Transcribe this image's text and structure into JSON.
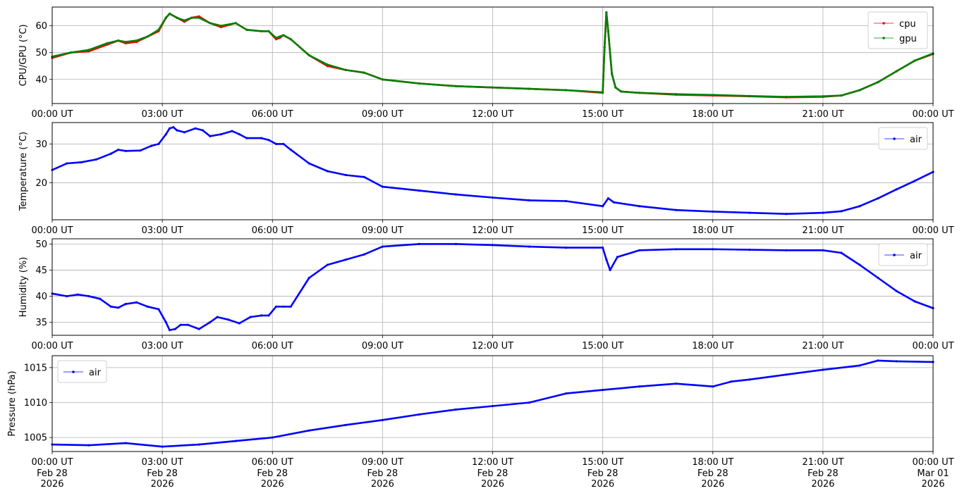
{
  "x_ticks": [
    "00:00 UT",
    "03:00 UT",
    "06:00 UT",
    "09:00 UT",
    "12:00 UT",
    "15:00 UT",
    "18:00 UT",
    "21:00 UT",
    "00:00 UT"
  ],
  "x_dates": [
    "Feb 28",
    "Feb 28",
    "Feb 28",
    "Feb 28",
    "Feb 28",
    "Feb 28",
    "Feb 28",
    "Feb 28",
    "Mar 01"
  ],
  "x_years": [
    "2026",
    "2026",
    "2026",
    "2026",
    "2026",
    "2026",
    "2026",
    "2026",
    "2026"
  ],
  "colors": {
    "cpu": "#ff0000",
    "gpu": "#008000",
    "air": "#0000ff",
    "grid": "#b0b0b0"
  },
  "chart_data": [
    {
      "type": "line",
      "ylabel": "CPU/GPU (°C)",
      "xlim_hours": [
        0,
        24
      ],
      "ylim": [
        31,
        67
      ],
      "yticks": [
        40,
        50,
        60
      ],
      "grid": true,
      "legend": "top-right",
      "series": [
        {
          "name": "cpu",
          "color": "#ff0000",
          "points": [
            [
              0,
              48
            ],
            [
              0.5,
              50
            ],
            [
              1,
              50.5
            ],
            [
              1.5,
              53
            ],
            [
              1.8,
              54.5
            ],
            [
              2,
              53.5
            ],
            [
              2.3,
              54
            ],
            [
              2.6,
              56
            ],
            [
              2.9,
              58
            ],
            [
              3.1,
              63
            ],
            [
              3.2,
              64.5
            ],
            [
              3.4,
              63
            ],
            [
              3.6,
              61.5
            ],
            [
              3.8,
              63
            ],
            [
              4,
              63.5
            ],
            [
              4.3,
              61
            ],
            [
              4.6,
              59.5
            ],
            [
              5,
              61
            ],
            [
              5.3,
              58.5
            ],
            [
              5.7,
              58
            ],
            [
              5.9,
              58
            ],
            [
              6.1,
              55
            ],
            [
              6.2,
              55.5
            ],
            [
              6.3,
              56.5
            ],
            [
              6.5,
              55
            ],
            [
              7,
              49
            ],
            [
              7.5,
              45
            ],
            [
              8,
              43.5
            ],
            [
              8.5,
              42.5
            ],
            [
              9,
              40
            ],
            [
              10,
              38.5
            ],
            [
              11,
              37.5
            ],
            [
              12,
              37
            ],
            [
              13,
              36.5
            ],
            [
              14,
              36
            ],
            [
              15,
              35
            ],
            [
              15.05,
              52
            ],
            [
              15.1,
              65
            ],
            [
              15.15,
              58
            ],
            [
              15.25,
              42
            ],
            [
              15.35,
              37
            ],
            [
              15.5,
              35.5
            ],
            [
              16,
              35
            ],
            [
              17,
              34.3
            ],
            [
              18,
              34
            ],
            [
              19,
              33.7
            ],
            [
              20,
              33.3
            ],
            [
              21,
              33.5
            ],
            [
              21.5,
              34
            ],
            [
              22,
              36
            ],
            [
              22.5,
              39
            ],
            [
              23,
              43
            ],
            [
              23.5,
              47
            ],
            [
              24,
              49.5
            ]
          ]
        },
        {
          "name": "gpu",
          "color": "#008000",
          "points": [
            [
              0,
              48.5
            ],
            [
              0.5,
              50
            ],
            [
              1,
              51
            ],
            [
              1.5,
              53.5
            ],
            [
              1.8,
              54.5
            ],
            [
              2,
              54
            ],
            [
              2.3,
              54.5
            ],
            [
              2.6,
              56
            ],
            [
              2.9,
              58.5
            ],
            [
              3.1,
              63
            ],
            [
              3.2,
              64.5
            ],
            [
              3.4,
              63
            ],
            [
              3.6,
              62
            ],
            [
              3.8,
              63
            ],
            [
              4,
              63
            ],
            [
              4.3,
              61
            ],
            [
              4.6,
              60
            ],
            [
              5,
              61
            ],
            [
              5.3,
              58.5
            ],
            [
              5.7,
              58
            ],
            [
              5.9,
              58
            ],
            [
              6.1,
              55.5
            ],
            [
              6.2,
              56
            ],
            [
              6.3,
              56.5
            ],
            [
              6.5,
              55
            ],
            [
              7,
              49
            ],
            [
              7.5,
              45.5
            ],
            [
              8,
              43.5
            ],
            [
              8.5,
              42.5
            ],
            [
              9,
              40
            ],
            [
              10,
              38.5
            ],
            [
              11,
              37.5
            ],
            [
              12,
              37
            ],
            [
              13,
              36.5
            ],
            [
              14,
              36
            ],
            [
              15,
              35.2
            ],
            [
              15.05,
              52
            ],
            [
              15.1,
              65
            ],
            [
              15.15,
              58
            ],
            [
              15.25,
              42
            ],
            [
              15.35,
              37
            ],
            [
              15.5,
              35.5
            ],
            [
              16,
              35
            ],
            [
              17,
              34.5
            ],
            [
              18,
              34.2
            ],
            [
              19,
              33.8
            ],
            [
              20,
              33.5
            ],
            [
              21,
              33.7
            ],
            [
              21.5,
              34
            ],
            [
              22,
              36
            ],
            [
              22.5,
              39
            ],
            [
              23,
              43
            ],
            [
              23.5,
              47
            ],
            [
              24,
              49.7
            ]
          ]
        }
      ]
    },
    {
      "type": "line",
      "ylabel": "Temperature (°C)",
      "xlim_hours": [
        0,
        24
      ],
      "ylim": [
        10.5,
        35.5
      ],
      "yticks": [
        20,
        30
      ],
      "grid": true,
      "legend": "top-right",
      "series": [
        {
          "name": "air",
          "color": "#0000ff",
          "points": [
            [
              0,
              23.3
            ],
            [
              0.4,
              25
            ],
            [
              0.8,
              25.3
            ],
            [
              1.2,
              26
            ],
            [
              1.6,
              27.5
            ],
            [
              1.8,
              28.5
            ],
            [
              2,
              28.2
            ],
            [
              2.4,
              28.3
            ],
            [
              2.7,
              29.5
            ],
            [
              2.9,
              30
            ],
            [
              3.1,
              32.5
            ],
            [
              3.2,
              34
            ],
            [
              3.3,
              34.3
            ],
            [
              3.4,
              33.5
            ],
            [
              3.6,
              33
            ],
            [
              3.9,
              34
            ],
            [
              4.1,
              33.5
            ],
            [
              4.3,
              32
            ],
            [
              4.6,
              32.5
            ],
            [
              4.9,
              33.3
            ],
            [
              5.1,
              32.5
            ],
            [
              5.3,
              31.5
            ],
            [
              5.7,
              31.5
            ],
            [
              5.9,
              31
            ],
            [
              6.1,
              30
            ],
            [
              6.3,
              30
            ],
            [
              6.5,
              28.5
            ],
            [
              7,
              25
            ],
            [
              7.5,
              23
            ],
            [
              8,
              22
            ],
            [
              8.5,
              21.5
            ],
            [
              9,
              19
            ],
            [
              10,
              18
            ],
            [
              11,
              17
            ],
            [
              12,
              16.2
            ],
            [
              13,
              15.5
            ],
            [
              14,
              15.3
            ],
            [
              15,
              14
            ],
            [
              15.15,
              16
            ],
            [
              15.3,
              15
            ],
            [
              16,
              14
            ],
            [
              17,
              13
            ],
            [
              18,
              12.6
            ],
            [
              19,
              12.3
            ],
            [
              20,
              12
            ],
            [
              21,
              12.3
            ],
            [
              21.5,
              12.7
            ],
            [
              22,
              14
            ],
            [
              22.5,
              16
            ],
            [
              23,
              18.3
            ],
            [
              23.5,
              20.5
            ],
            [
              24,
              22.8
            ]
          ]
        }
      ]
    },
    {
      "type": "line",
      "ylabel": "Humidity (%)",
      "xlim_hours": [
        0,
        24
      ],
      "ylim": [
        32.5,
        51
      ],
      "yticks": [
        35,
        40,
        45,
        50
      ],
      "grid": true,
      "legend": "top-right",
      "series": [
        {
          "name": "air",
          "color": "#0000ff",
          "points": [
            [
              0,
              40.5
            ],
            [
              0.4,
              40
            ],
            [
              0.7,
              40.3
            ],
            [
              1,
              40
            ],
            [
              1.3,
              39.5
            ],
            [
              1.6,
              38
            ],
            [
              1.8,
              37.8
            ],
            [
              2,
              38.5
            ],
            [
              2.3,
              38.8
            ],
            [
              2.6,
              38
            ],
            [
              2.9,
              37.5
            ],
            [
              3.1,
              35
            ],
            [
              3.2,
              33.5
            ],
            [
              3.35,
              33.7
            ],
            [
              3.5,
              34.5
            ],
            [
              3.7,
              34.5
            ],
            [
              4,
              33.7
            ],
            [
              4.3,
              35
            ],
            [
              4.5,
              36
            ],
            [
              4.8,
              35.5
            ],
            [
              5.1,
              34.8
            ],
            [
              5.4,
              36
            ],
            [
              5.7,
              36.3
            ],
            [
              5.9,
              36.3
            ],
            [
              6.1,
              38
            ],
            [
              6.3,
              38
            ],
            [
              6.5,
              38
            ],
            [
              7,
              43.5
            ],
            [
              7.5,
              46
            ],
            [
              8,
              47
            ],
            [
              8.5,
              48
            ],
            [
              9,
              49.5
            ],
            [
              10,
              50
            ],
            [
              11,
              50
            ],
            [
              12,
              49.8
            ],
            [
              13,
              49.5
            ],
            [
              14,
              49.3
            ],
            [
              15,
              49.3
            ],
            [
              15.1,
              47
            ],
            [
              15.2,
              45
            ],
            [
              15.4,
              47.5
            ],
            [
              16,
              48.8
            ],
            [
              17,
              49
            ],
            [
              18,
              49
            ],
            [
              19,
              48.9
            ],
            [
              20,
              48.8
            ],
            [
              21,
              48.8
            ],
            [
              21.5,
              48.3
            ],
            [
              22,
              46
            ],
            [
              22.5,
              43.5
            ],
            [
              23,
              41
            ],
            [
              23.5,
              39
            ],
            [
              24,
              37.7
            ]
          ]
        }
      ]
    },
    {
      "type": "line",
      "ylabel": "Pressure (hPa)",
      "xlim_hours": [
        0,
        24
      ],
      "ylim": [
        1003,
        1016.7
      ],
      "yticks": [
        1005,
        1010,
        1015
      ],
      "grid": true,
      "legend": "top-left",
      "series": [
        {
          "name": "air",
          "color": "#0000ff",
          "points": [
            [
              0,
              1004
            ],
            [
              1,
              1003.9
            ],
            [
              2,
              1004.2
            ],
            [
              3,
              1003.7
            ],
            [
              4,
              1004
            ],
            [
              5,
              1004.5
            ],
            [
              6,
              1005
            ],
            [
              7,
              1006
            ],
            [
              8,
              1006.8
            ],
            [
              9,
              1007.5
            ],
            [
              10,
              1008.3
            ],
            [
              11,
              1009
            ],
            [
              12,
              1009.5
            ],
            [
              13,
              1010
            ],
            [
              14,
              1011.3
            ],
            [
              15,
              1011.8
            ],
            [
              16,
              1012.3
            ],
            [
              17,
              1012.7
            ],
            [
              18,
              1012.3
            ],
            [
              18.5,
              1013
            ],
            [
              19,
              1013.3
            ],
            [
              20,
              1014
            ],
            [
              21,
              1014.7
            ],
            [
              22,
              1015.3
            ],
            [
              22.5,
              1016
            ],
            [
              23,
              1015.9
            ],
            [
              24,
              1015.8
            ]
          ]
        }
      ]
    }
  ]
}
